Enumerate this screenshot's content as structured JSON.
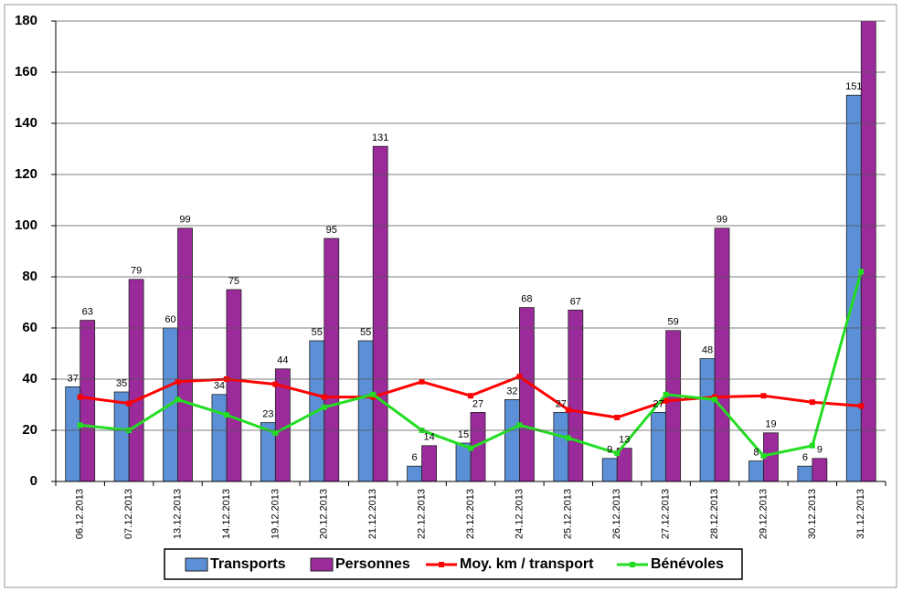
{
  "chart_data": {
    "type": "bar",
    "categories": [
      "06.12.2013",
      "07.12.2013",
      "13.12.2013",
      "14.12.2013",
      "19.12.2013",
      "20.12.2013",
      "21.12.2013",
      "22.12.2013",
      "23.12.2013",
      "24.12.2013",
      "25.12.2013",
      "26.12.2013",
      "27.12.2013",
      "28.12.2013",
      "29.12.2013",
      "30.12.2013",
      "31.12.2013"
    ],
    "series": [
      {
        "name": "Transports",
        "kind": "bar",
        "color": "#5b8fd6",
        "values": [
          37,
          35,
          60,
          34,
          23,
          55,
          55,
          6,
          15,
          32,
          27,
          9,
          27,
          48,
          8,
          6,
          151
        ]
      },
      {
        "name": "Personnes",
        "kind": "bar",
        "color": "#9b2a9b",
        "values": [
          63,
          79,
          99,
          75,
          44,
          95,
          131,
          14,
          27,
          68,
          67,
          13,
          59,
          99,
          19,
          9,
          185
        ]
      },
      {
        "name": "Moy. km / transport",
        "kind": "line",
        "color": "#ff0000",
        "values": [
          33,
          30.5,
          39,
          40,
          38,
          33,
          33,
          39,
          33.5,
          41,
          28,
          25,
          31.5,
          33,
          33.5,
          31,
          29.5
        ]
      },
      {
        "name": "Bénévoles",
        "kind": "line",
        "color": "#22dd22",
        "values": [
          22,
          20,
          32,
          26,
          19,
          29,
          34,
          20,
          13,
          22,
          17,
          11,
          34,
          32,
          10,
          14,
          82
        ]
      }
    ],
    "ylim": [
      0,
      180
    ],
    "yticks": [
      0,
      20,
      40,
      60,
      80,
      100,
      120,
      140,
      160,
      180
    ],
    "grid": true,
    "legend": "bottom"
  }
}
